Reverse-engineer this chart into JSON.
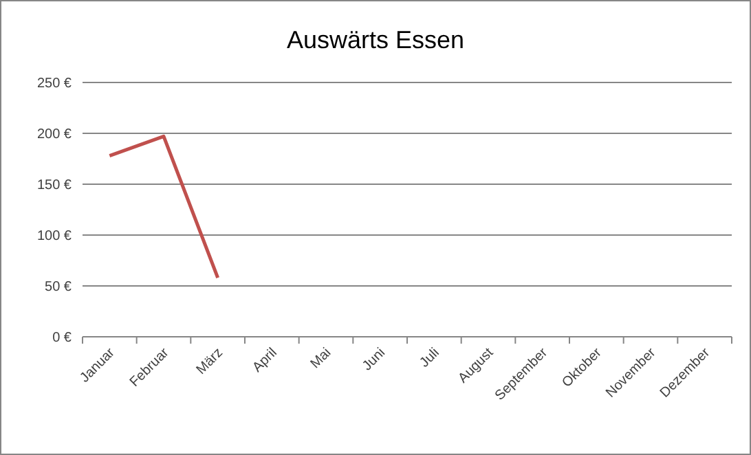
{
  "chart_data": {
    "type": "line",
    "title": "Auswärts Essen",
    "categories": [
      "Januar",
      "Februar",
      "März",
      "April",
      "Mai",
      "Juni",
      "Juli",
      "August",
      "September",
      "Oktober",
      "November",
      "Dezember"
    ],
    "series": [
      {
        "color": "#c0504d",
        "values": [
          178,
          197,
          58,
          null,
          null,
          null,
          null,
          null,
          null,
          null,
          null,
          null
        ]
      }
    ],
    "ylim": [
      0,
      250
    ],
    "yticks": [
      {
        "value": 0,
        "label": "0 €"
      },
      {
        "value": 50,
        "label": "50 €"
      },
      {
        "value": 100,
        "label": "100 €"
      },
      {
        "value": 150,
        "label": "150 €"
      },
      {
        "value": 200,
        "label": "200 €"
      },
      {
        "value": 250,
        "label": "250 €"
      }
    ],
    "grid": "y",
    "marker": "none",
    "line_style": "solid"
  }
}
